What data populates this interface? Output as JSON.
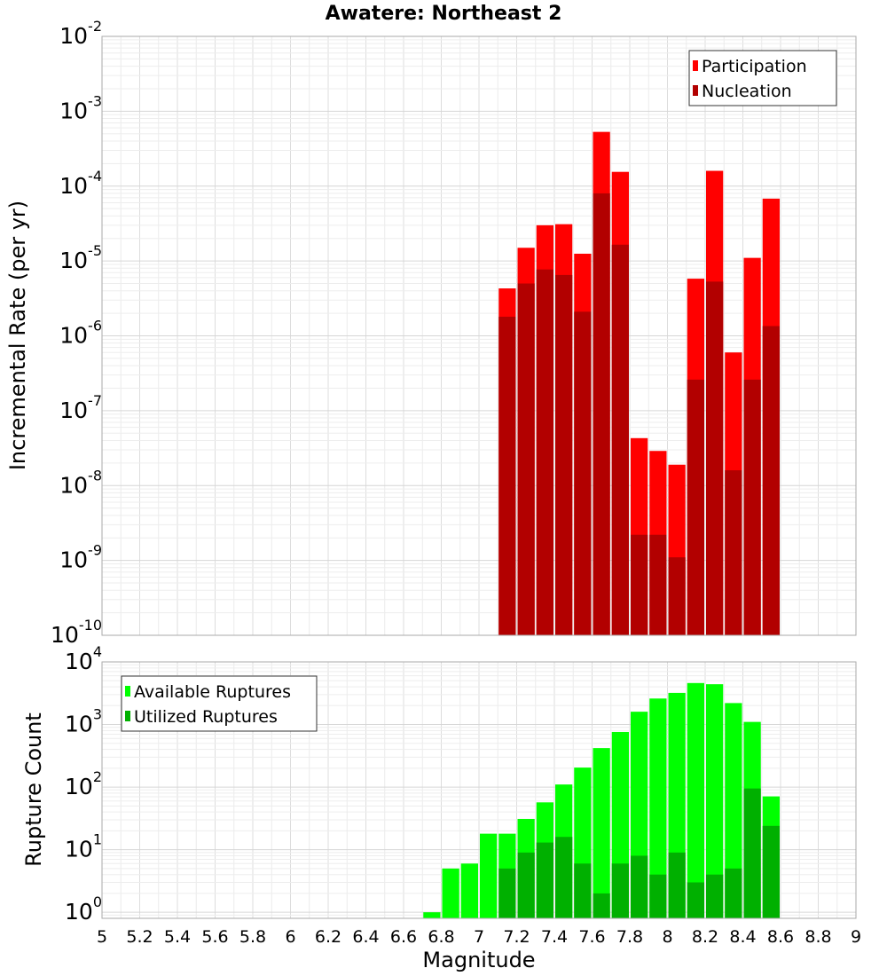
{
  "chart_data": [
    {
      "type": "bar",
      "title": "Awatere: Northeast 2",
      "xlabel": "",
      "ylabel": "Incremental Rate (per yr)",
      "yscale": "log",
      "xlim": [
        5,
        9
      ],
      "ylim": [
        1e-10,
        0.01
      ],
      "bar_width": 0.1,
      "grid": true,
      "legend_position": "top-right",
      "y_ticks": [
        {
          "base": "10",
          "exp": "-10"
        },
        {
          "base": "10",
          "exp": "-9"
        },
        {
          "base": "10",
          "exp": "-8"
        },
        {
          "base": "10",
          "exp": "-7"
        },
        {
          "base": "10",
          "exp": "-6"
        },
        {
          "base": "10",
          "exp": "-5"
        },
        {
          "base": "10",
          "exp": "-4"
        },
        {
          "base": "10",
          "exp": "-3"
        },
        {
          "base": "10",
          "exp": "-2"
        }
      ],
      "x": [
        7.15,
        7.25,
        7.35,
        7.45,
        7.55,
        7.65,
        7.75,
        7.85,
        7.95,
        8.05,
        8.15,
        8.25,
        8.35,
        8.45,
        8.55
      ],
      "series": [
        {
          "name": "Participation",
          "color": "#ff0000",
          "values": [
            4.3e-06,
            1.5e-05,
            3e-05,
            3.1e-05,
            1.25e-05,
            0.00053,
            0.000155,
            4.3e-08,
            2.9e-08,
            1.9e-08,
            5.8e-06,
            0.00016,
            6e-07,
            1.1e-05,
            6.8e-05
          ]
        },
        {
          "name": "Nucleation",
          "color": "#b20000",
          "values": [
            1.8e-06,
            5e-06,
            7.7e-06,
            6.5e-06,
            2.1e-06,
            8e-05,
            1.65e-05,
            2.2e-09,
            2.2e-09,
            1.1e-09,
            2.6e-07,
            5.3e-06,
            1.6e-08,
            2.6e-07,
            1.35e-06
          ]
        }
      ]
    },
    {
      "type": "bar",
      "title": "",
      "xlabel": "Magnitude",
      "ylabel": "Rupture Count",
      "yscale": "log",
      "xlim": [
        5,
        9
      ],
      "ylim": [
        0.8,
        10000
      ],
      "bar_width": 0.1,
      "grid": true,
      "legend_position": "top-left",
      "x_ticks": [
        "5",
        "5.2",
        "5.4",
        "5.6",
        "5.8",
        "6",
        "6.2",
        "6.4",
        "6.6",
        "6.8",
        "7",
        "7.2",
        "7.4",
        "7.6",
        "7.8",
        "8",
        "8.2",
        "8.4",
        "8.6",
        "8.8",
        "9"
      ],
      "y_ticks": [
        {
          "base": "10",
          "exp": "0"
        },
        {
          "base": "10",
          "exp": "1"
        },
        {
          "base": "10",
          "exp": "2"
        },
        {
          "base": "10",
          "exp": "3"
        },
        {
          "base": "10",
          "exp": "4"
        }
      ],
      "x": [
        6.75,
        6.85,
        6.95,
        7.05,
        7.15,
        7.25,
        7.35,
        7.45,
        7.55,
        7.65,
        7.75,
        7.85,
        7.95,
        8.05,
        8.15,
        8.25,
        8.35,
        8.45,
        8.55
      ],
      "series": [
        {
          "name": "Available Ruptures",
          "color": "#00ff00",
          "values": [
            1,
            5,
            6,
            18,
            18,
            31,
            57,
            110,
            205,
            420,
            760,
            1600,
            2600,
            3200,
            4600,
            4400,
            2200,
            1100,
            71
          ]
        },
        {
          "name": "Utilized Ruptures",
          "color": "#00b000",
          "values": [
            null,
            null,
            null,
            null,
            5,
            9,
            13,
            16,
            6,
            2,
            6,
            8,
            4,
            9,
            3,
            4,
            5,
            95,
            24
          ]
        }
      ]
    }
  ]
}
